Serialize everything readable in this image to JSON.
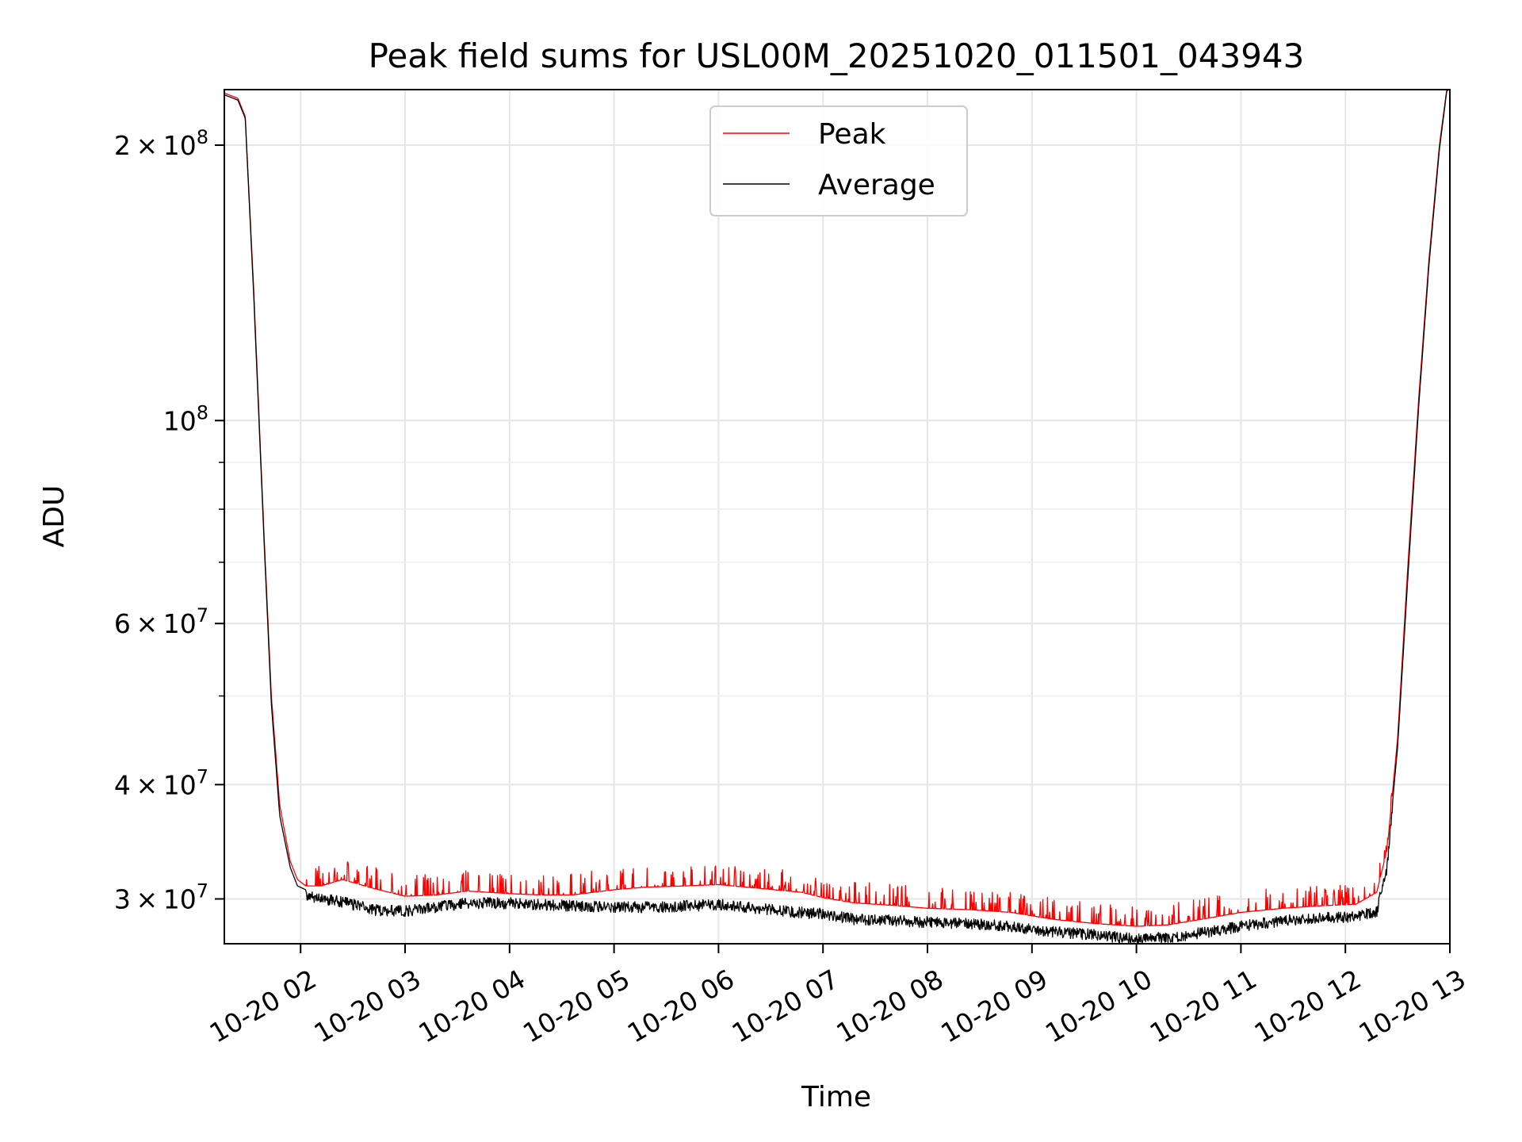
{
  "chart_data": {
    "type": "line",
    "title": "Peak field sums for USL00M_20251020_011501_043943",
    "xlabel": "Time",
    "ylabel": "ADU",
    "xscale": "time",
    "yscale": "log",
    "xlim": [
      1.27,
      13.0
    ],
    "ylim": [
      26800000,
      230000000
    ],
    "grid": true,
    "legend_position": "top-center",
    "x_ticks": [
      {
        "value": 2,
        "label": "10-20 02"
      },
      {
        "value": 3,
        "label": "10-20 03"
      },
      {
        "value": 4,
        "label": "10-20 04"
      },
      {
        "value": 5,
        "label": "10-20 05"
      },
      {
        "value": 6,
        "label": "10-20 06"
      },
      {
        "value": 7,
        "label": "10-20 07"
      },
      {
        "value": 8,
        "label": "10-20 08"
      },
      {
        "value": 9,
        "label": "10-20 09"
      },
      {
        "value": 10,
        "label": "10-20 10"
      },
      {
        "value": 11,
        "label": "10-20 11"
      },
      {
        "value": 12,
        "label": "10-20 12"
      },
      {
        "value": 13,
        "label": "10-20 13"
      }
    ],
    "y_ticks": [
      {
        "value": 200000000,
        "mant": "2",
        "exp": "8"
      },
      {
        "value": 100000000,
        "mant": "",
        "exp": "8"
      },
      {
        "value": 60000000,
        "mant": "6",
        "exp": "7"
      },
      {
        "value": 40000000,
        "mant": "4",
        "exp": "7"
      },
      {
        "value": 30000000,
        "mant": "3",
        "exp": "7"
      }
    ],
    "y_minor_ticks": [
      50000000,
      70000000,
      80000000,
      90000000
    ],
    "series": [
      {
        "name": "Peak",
        "color": "#ff0000",
        "x": [
          1.27,
          1.4,
          1.47,
          1.55,
          1.65,
          1.72,
          1.8,
          1.9,
          1.97,
          2.05,
          2.2,
          2.4,
          2.7,
          3.0,
          3.3,
          3.6,
          4.0,
          4.3,
          4.6,
          5.0,
          5.3,
          5.7,
          6.0,
          6.4,
          6.8,
          7.0,
          7.3,
          7.7,
          8.0,
          8.4,
          8.8,
          9.2,
          9.6,
          10.0,
          10.3,
          10.7,
          11.0,
          11.4,
          11.8,
          12.1,
          12.3,
          12.4,
          12.5,
          12.6,
          12.7,
          12.8,
          12.9,
          12.97,
          13.0
        ],
        "y": [
          228000000,
          225000000,
          215000000,
          140000000,
          75000000,
          50000000,
          38000000,
          33000000,
          31500000,
          31000000,
          31000000,
          31500000,
          30800000,
          30200000,
          30300000,
          30600000,
          30400000,
          30300000,
          30300000,
          30700000,
          30900000,
          31000000,
          31100000,
          30800000,
          30500000,
          30100000,
          29700000,
          29500000,
          29300000,
          29200000,
          29000000,
          28500000,
          28200000,
          28000000,
          28100000,
          28600000,
          29000000,
          29300000,
          29500000,
          29600000,
          30500000,
          34000000,
          45000000,
          70000000,
          105000000,
          150000000,
          200000000,
          230000000,
          232000000
        ]
      },
      {
        "name": "Average",
        "color": "#000000",
        "x": [
          1.27,
          1.4,
          1.47,
          1.55,
          1.65,
          1.72,
          1.8,
          1.9,
          1.97,
          2.05,
          2.2,
          2.4,
          2.7,
          3.0,
          3.3,
          3.6,
          4.0,
          4.3,
          4.6,
          5.0,
          5.3,
          5.7,
          6.0,
          6.4,
          6.8,
          7.0,
          7.3,
          7.7,
          8.0,
          8.4,
          8.8,
          9.2,
          9.6,
          10.0,
          10.3,
          10.7,
          11.0,
          11.4,
          11.8,
          12.1,
          12.3,
          12.4,
          12.5,
          12.6,
          12.7,
          12.8,
          12.9,
          12.97,
          13.0
        ],
        "y": [
          227000000,
          224000000,
          214000000,
          138000000,
          74000000,
          49000000,
          37000000,
          32500000,
          31000000,
          30700000,
          30400000,
          30200000,
          29600000,
          29500000,
          29800000,
          30100000,
          30100000,
          30000000,
          29900000,
          29800000,
          29800000,
          29900000,
          30000000,
          29700000,
          29400000,
          29300000,
          28900000,
          28800000,
          28700000,
          28600000,
          28400000,
          28000000,
          27800000,
          27500000,
          27600000,
          28000000,
          28400000,
          28800000,
          29000000,
          29100000,
          29500000,
          33000000,
          44000000,
          68000000,
          103000000,
          148000000,
          198000000,
          229000000,
          231000000
        ]
      }
    ]
  }
}
